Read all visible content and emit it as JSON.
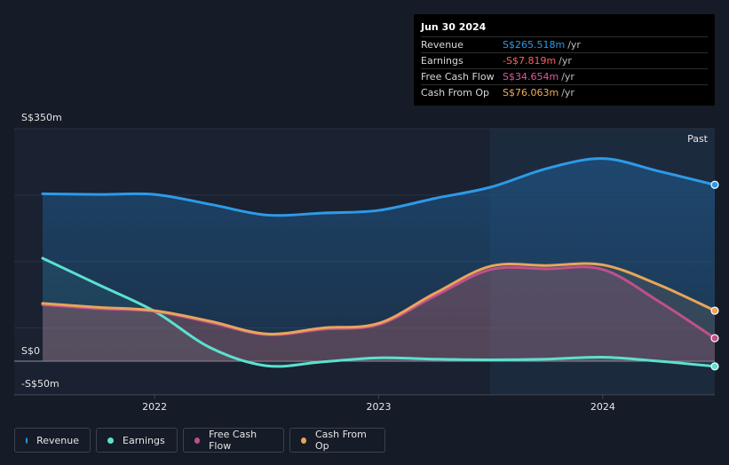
{
  "chart_data": {
    "type": "area",
    "y_tick_labels": [
      "S$350m",
      "S$0",
      "-S$50m"
    ],
    "ylim": [
      -50,
      350
    ],
    "x_tick_labels": [
      "2022",
      "2023",
      "2024"
    ],
    "past_label": "Past",
    "series": [
      {
        "name": "Revenue",
        "color": "#2d9ae8",
        "x": [
          2021.5,
          2021.75,
          2022.0,
          2022.25,
          2022.5,
          2022.75,
          2023.0,
          2023.25,
          2023.5,
          2023.75,
          2024.0,
          2024.25,
          2024.5
        ],
        "values": [
          252,
          251,
          251,
          236,
          220,
          223,
          227,
          245,
          262,
          290,
          305,
          286,
          265.518
        ]
      },
      {
        "name": "Earnings",
        "color": "#5ce1cf",
        "x": [
          2021.5,
          2021.75,
          2022.0,
          2022.25,
          2022.5,
          2022.75,
          2023.0,
          2023.25,
          2023.5,
          2023.75,
          2024.0,
          2024.25,
          2024.5
        ],
        "values": [
          155,
          115,
          75,
          20,
          -7,
          -1,
          5,
          3,
          2,
          3,
          6,
          0,
          -7.819
        ]
      },
      {
        "name": "Free Cash Flow",
        "color": "#c0508a",
        "x": [
          2021.5,
          2021.75,
          2022.0,
          2022.25,
          2022.5,
          2022.75,
          2023.0,
          2023.25,
          2023.5,
          2023.75,
          2024.0,
          2024.25,
          2024.5
        ],
        "values": [
          85,
          79,
          75,
          58,
          40,
          48,
          55,
          98,
          138,
          139,
          138,
          90,
          34.654
        ]
      },
      {
        "name": "Cash From Op",
        "color": "#e8a55b",
        "x": [
          2021.5,
          2021.75,
          2022.0,
          2022.25,
          2022.5,
          2022.75,
          2023.0,
          2023.25,
          2023.5,
          2023.75,
          2024.0,
          2024.25,
          2024.5
        ],
        "values": [
          87,
          81,
          76,
          60,
          41,
          50,
          57,
          102,
          143,
          144,
          145,
          115,
          76.063
        ]
      }
    ]
  },
  "tooltip": {
    "date": "Jun 30 2024",
    "unit": "/yr",
    "rows": [
      {
        "label": "Revenue",
        "value": "S$265.518m",
        "color": "#2d9ae8"
      },
      {
        "label": "Earnings",
        "value": "-S$7.819m",
        "color": "#ff5f5f"
      },
      {
        "label": "Free Cash Flow",
        "value": "S$34.654m",
        "color": "#e0579b"
      },
      {
        "label": "Cash From Op",
        "value": "S$76.063m",
        "color": "#f0ad55"
      }
    ]
  },
  "legend": [
    {
      "label": "Revenue",
      "color": "#2d9ae8"
    },
    {
      "label": "Earnings",
      "color": "#5ce1cf"
    },
    {
      "label": "Free Cash Flow",
      "color": "#c0508a"
    },
    {
      "label": "Cash From Op",
      "color": "#e8a55b"
    }
  ]
}
